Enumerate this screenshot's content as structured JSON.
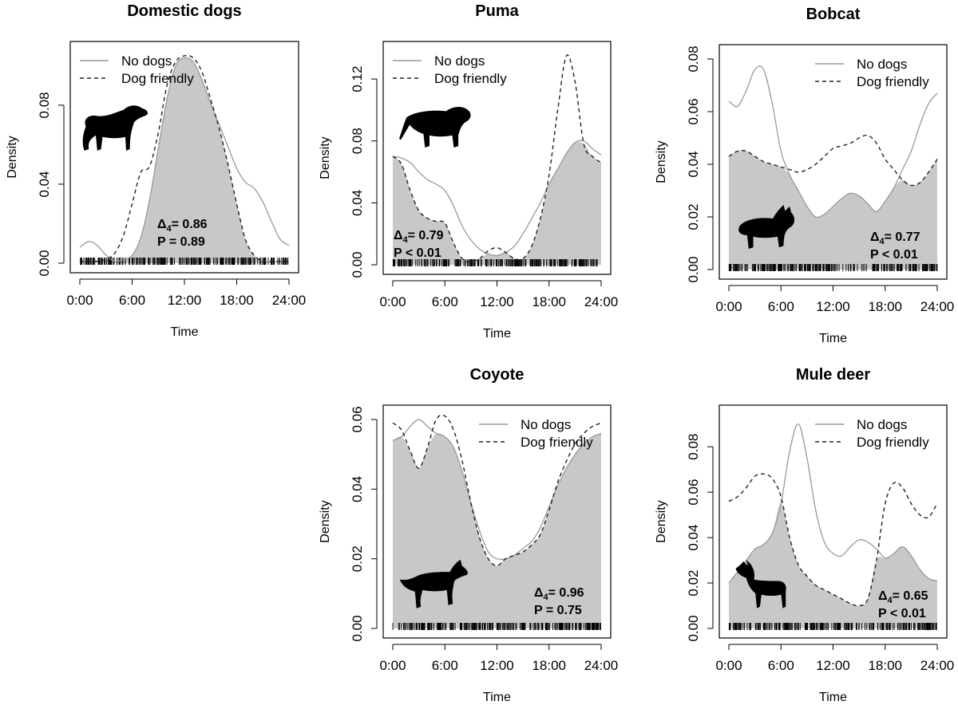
{
  "chart_data": [
    {
      "type": "line",
      "title": "Domestic dogs",
      "xlabel": "Time",
      "ylabel": "Density",
      "x_ticks": [
        "0:00",
        "6:00",
        "12:00",
        "18:00",
        "24:00"
      ],
      "xlim": [
        0,
        24
      ],
      "ylim": [
        0,
        0.105
      ],
      "y_ticks": [
        "0.00",
        "0.04",
        "0.08"
      ],
      "legend": {
        "position": "top-left",
        "entries": [
          "No dogs",
          "Dog friendly"
        ]
      },
      "overlap_stat": {
        "delta_label": "Δ",
        "delta_sub": "4",
        "delta_value": "= 0.86",
        "p_label": "P = 0.89"
      },
      "animal_icon": "dog-silhouette-icon",
      "series": [
        {
          "name": "No dogs",
          "style": "solid",
          "x": [
            0,
            1,
            2,
            3,
            4,
            5,
            6,
            7,
            8,
            9,
            10,
            11,
            12,
            13,
            14,
            15,
            16,
            17,
            18,
            19,
            20,
            21,
            22,
            23,
            24
          ],
          "y": [
            0.008,
            0.011,
            0.009,
            0.004,
            0.001,
            0.002,
            0.004,
            0.013,
            0.032,
            0.058,
            0.083,
            0.1,
            0.104,
            0.102,
            0.093,
            0.081,
            0.07,
            0.059,
            0.048,
            0.041,
            0.038,
            0.031,
            0.021,
            0.012,
            0.009
          ]
        },
        {
          "name": "Dog friendly",
          "style": "dashed",
          "x": [
            0,
            1,
            2,
            3,
            4,
            5,
            6,
            7,
            8,
            9,
            10,
            11,
            12,
            13,
            14,
            15,
            16,
            17,
            18,
            19,
            20,
            21,
            22,
            23,
            24
          ],
          "y": [
            0.001,
            0.001,
            0.001,
            0.002,
            0.005,
            0.014,
            0.03,
            0.046,
            0.049,
            0.066,
            0.09,
            0.102,
            0.105,
            0.104,
            0.097,
            0.083,
            0.068,
            0.05,
            0.03,
            0.012,
            0.004,
            0.001,
            0.001,
            0.001,
            0.001
          ]
        }
      ]
    },
    {
      "type": "line",
      "title": "Puma",
      "xlabel": "Time",
      "ylabel": "Density",
      "x_ticks": [
        "0:00",
        "6:00",
        "12:00",
        "18:00",
        "24:00"
      ],
      "xlim": [
        0,
        24
      ],
      "ylim": [
        0,
        0.135
      ],
      "y_ticks": [
        "0.00",
        "0.04",
        "0.08",
        "0.12"
      ],
      "legend": {
        "position": "top-left",
        "entries": [
          "No dogs",
          "Dog friendly"
        ]
      },
      "overlap_stat": {
        "delta_label": "Δ",
        "delta_sub": "4",
        "delta_value": "= 0.79",
        "p_label": "P < 0.01"
      },
      "animal_icon": "puma-silhouette-icon",
      "series": [
        {
          "name": "No dogs",
          "style": "solid",
          "x": [
            0,
            1,
            2,
            3,
            4,
            5,
            6,
            7,
            8,
            9,
            10,
            11,
            12,
            13,
            14,
            15,
            16,
            17,
            18,
            19,
            20,
            21,
            22,
            23,
            24
          ],
          "y": [
            0.07,
            0.069,
            0.066,
            0.06,
            0.055,
            0.052,
            0.048,
            0.038,
            0.025,
            0.016,
            0.01,
            0.007,
            0.006,
            0.008,
            0.012,
            0.02,
            0.03,
            0.04,
            0.052,
            0.062,
            0.072,
            0.079,
            0.08,
            0.075,
            0.071
          ]
        },
        {
          "name": "Dog friendly",
          "style": "dashed",
          "x": [
            0,
            1,
            2,
            3,
            4,
            5,
            6,
            7,
            8,
            9,
            10,
            11,
            12,
            13,
            14,
            15,
            16,
            17,
            18,
            19,
            20,
            21,
            22,
            23,
            24
          ],
          "y": [
            0.07,
            0.065,
            0.048,
            0.035,
            0.03,
            0.028,
            0.027,
            0.014,
            0.004,
            0.002,
            0.004,
            0.009,
            0.011,
            0.008,
            0.004,
            0.004,
            0.012,
            0.03,
            0.058,
            0.1,
            0.135,
            0.118,
            0.078,
            0.07,
            0.066
          ]
        }
      ]
    },
    {
      "type": "line",
      "title": "Bobcat",
      "xlabel": "Time",
      "ylabel": "Density",
      "x_ticks": [
        "0:00",
        "6:00",
        "12:00",
        "18:00",
        "24:00"
      ],
      "xlim": [
        0,
        24
      ],
      "ylim": [
        0,
        0.08
      ],
      "y_ticks": [
        "0.00",
        "0.02",
        "0.04",
        "0.06",
        "0.08"
      ],
      "legend": {
        "position": "top-right",
        "entries": [
          "No dogs",
          "Dog friendly"
        ]
      },
      "overlap_stat": {
        "delta_label": "Δ",
        "delta_sub": "4",
        "delta_value": "= 0.77",
        "p_label": "P < 0.01"
      },
      "animal_icon": "bobcat-silhouette-icon",
      "series": [
        {
          "name": "No dogs",
          "style": "solid",
          "x": [
            0,
            1,
            2,
            3,
            4,
            5,
            6,
            7,
            8,
            9,
            10,
            11,
            12,
            13,
            14,
            15,
            16,
            17,
            18,
            19,
            20,
            21,
            22,
            23,
            24
          ],
          "y": [
            0.064,
            0.062,
            0.068,
            0.076,
            0.076,
            0.063,
            0.045,
            0.036,
            0.03,
            0.024,
            0.02,
            0.021,
            0.024,
            0.027,
            0.029,
            0.028,
            0.025,
            0.022,
            0.026,
            0.031,
            0.038,
            0.045,
            0.055,
            0.063,
            0.067
          ]
        },
        {
          "name": "Dog friendly",
          "style": "dashed",
          "x": [
            0,
            1,
            2,
            3,
            4,
            5,
            6,
            7,
            8,
            9,
            10,
            11,
            12,
            13,
            14,
            15,
            16,
            17,
            18,
            19,
            20,
            21,
            22,
            23,
            24
          ],
          "y": [
            0.043,
            0.045,
            0.045,
            0.043,
            0.041,
            0.04,
            0.039,
            0.038,
            0.037,
            0.038,
            0.04,
            0.043,
            0.046,
            0.047,
            0.048,
            0.05,
            0.051,
            0.048,
            0.042,
            0.038,
            0.034,
            0.032,
            0.033,
            0.037,
            0.042
          ]
        }
      ]
    },
    {
      "type": "line",
      "title": "Coyote",
      "xlabel": "Time",
      "ylabel": "Density",
      "x_ticks": [
        "0:00",
        "6:00",
        "12:00",
        "18:00",
        "24:00"
      ],
      "xlim": [
        0,
        24
      ],
      "ylim": [
        0,
        0.06
      ],
      "y_ticks": [
        "0.00",
        "0.02",
        "0.04",
        "0.06"
      ],
      "legend": {
        "position": "top-right",
        "entries": [
          "No dogs",
          "Dog friendly"
        ]
      },
      "overlap_stat": {
        "delta_label": "Δ",
        "delta_sub": "4",
        "delta_value": "= 0.96",
        "p_label": "P = 0.75"
      },
      "animal_icon": "coyote-silhouette-icon",
      "series": [
        {
          "name": "No dogs",
          "style": "solid",
          "x": [
            0,
            1,
            2,
            3,
            4,
            5,
            6,
            7,
            8,
            9,
            10,
            11,
            12,
            13,
            14,
            15,
            16,
            17,
            18,
            19,
            20,
            21,
            22,
            23,
            24
          ],
          "y": [
            0.054,
            0.055,
            0.058,
            0.06,
            0.058,
            0.056,
            0.055,
            0.052,
            0.045,
            0.036,
            0.028,
            0.022,
            0.02,
            0.02,
            0.021,
            0.023,
            0.025,
            0.029,
            0.035,
            0.041,
            0.046,
            0.05,
            0.053,
            0.055,
            0.056
          ]
        },
        {
          "name": "Dog friendly",
          "style": "dashed",
          "x": [
            0,
            1,
            2,
            3,
            4,
            5,
            6,
            7,
            8,
            9,
            10,
            11,
            12,
            13,
            14,
            15,
            16,
            17,
            18,
            19,
            20,
            21,
            22,
            23,
            24
          ],
          "y": [
            0.059,
            0.057,
            0.051,
            0.046,
            0.052,
            0.06,
            0.061,
            0.057,
            0.048,
            0.036,
            0.026,
            0.02,
            0.018,
            0.02,
            0.021,
            0.022,
            0.024,
            0.027,
            0.034,
            0.042,
            0.048,
            0.053,
            0.056,
            0.058,
            0.059
          ]
        }
      ]
    },
    {
      "type": "line",
      "title": "Mule deer",
      "xlabel": "Time",
      "ylabel": "Density",
      "x_ticks": [
        "0:00",
        "6:00",
        "12:00",
        "18:00",
        "24:00"
      ],
      "xlim": [
        0,
        24
      ],
      "ylim": [
        0,
        0.092
      ],
      "y_ticks": [
        "0.00",
        "0.02",
        "0.04",
        "0.06",
        "0.08"
      ],
      "legend": {
        "position": "top-right",
        "entries": [
          "No dogs",
          "Dog friendly"
        ]
      },
      "overlap_stat": {
        "delta_label": "Δ",
        "delta_sub": "4",
        "delta_value": "= 0.65",
        "p_label": "P < 0.01"
      },
      "animal_icon": "deer-silhouette-icon",
      "series": [
        {
          "name": "No dogs",
          "style": "solid",
          "x": [
            0,
            1,
            2,
            3,
            4,
            5,
            6,
            7,
            8,
            9,
            10,
            11,
            12,
            13,
            14,
            15,
            16,
            17,
            18,
            19,
            20,
            21,
            22,
            23,
            24
          ],
          "y": [
            0.02,
            0.025,
            0.03,
            0.035,
            0.037,
            0.042,
            0.055,
            0.078,
            0.09,
            0.075,
            0.052,
            0.038,
            0.033,
            0.032,
            0.036,
            0.039,
            0.038,
            0.035,
            0.031,
            0.033,
            0.036,
            0.032,
            0.026,
            0.022,
            0.021
          ]
        },
        {
          "name": "Dog friendly",
          "style": "dashed",
          "x": [
            0,
            1,
            2,
            3,
            4,
            5,
            6,
            7,
            8,
            9,
            10,
            11,
            12,
            13,
            14,
            15,
            16,
            17,
            18,
            19,
            20,
            21,
            22,
            23,
            24
          ],
          "y": [
            0.056,
            0.058,
            0.062,
            0.067,
            0.068,
            0.066,
            0.058,
            0.04,
            0.028,
            0.023,
            0.019,
            0.017,
            0.015,
            0.013,
            0.011,
            0.01,
            0.013,
            0.03,
            0.055,
            0.064,
            0.062,
            0.055,
            0.05,
            0.049,
            0.055
          ]
        }
      ]
    }
  ]
}
